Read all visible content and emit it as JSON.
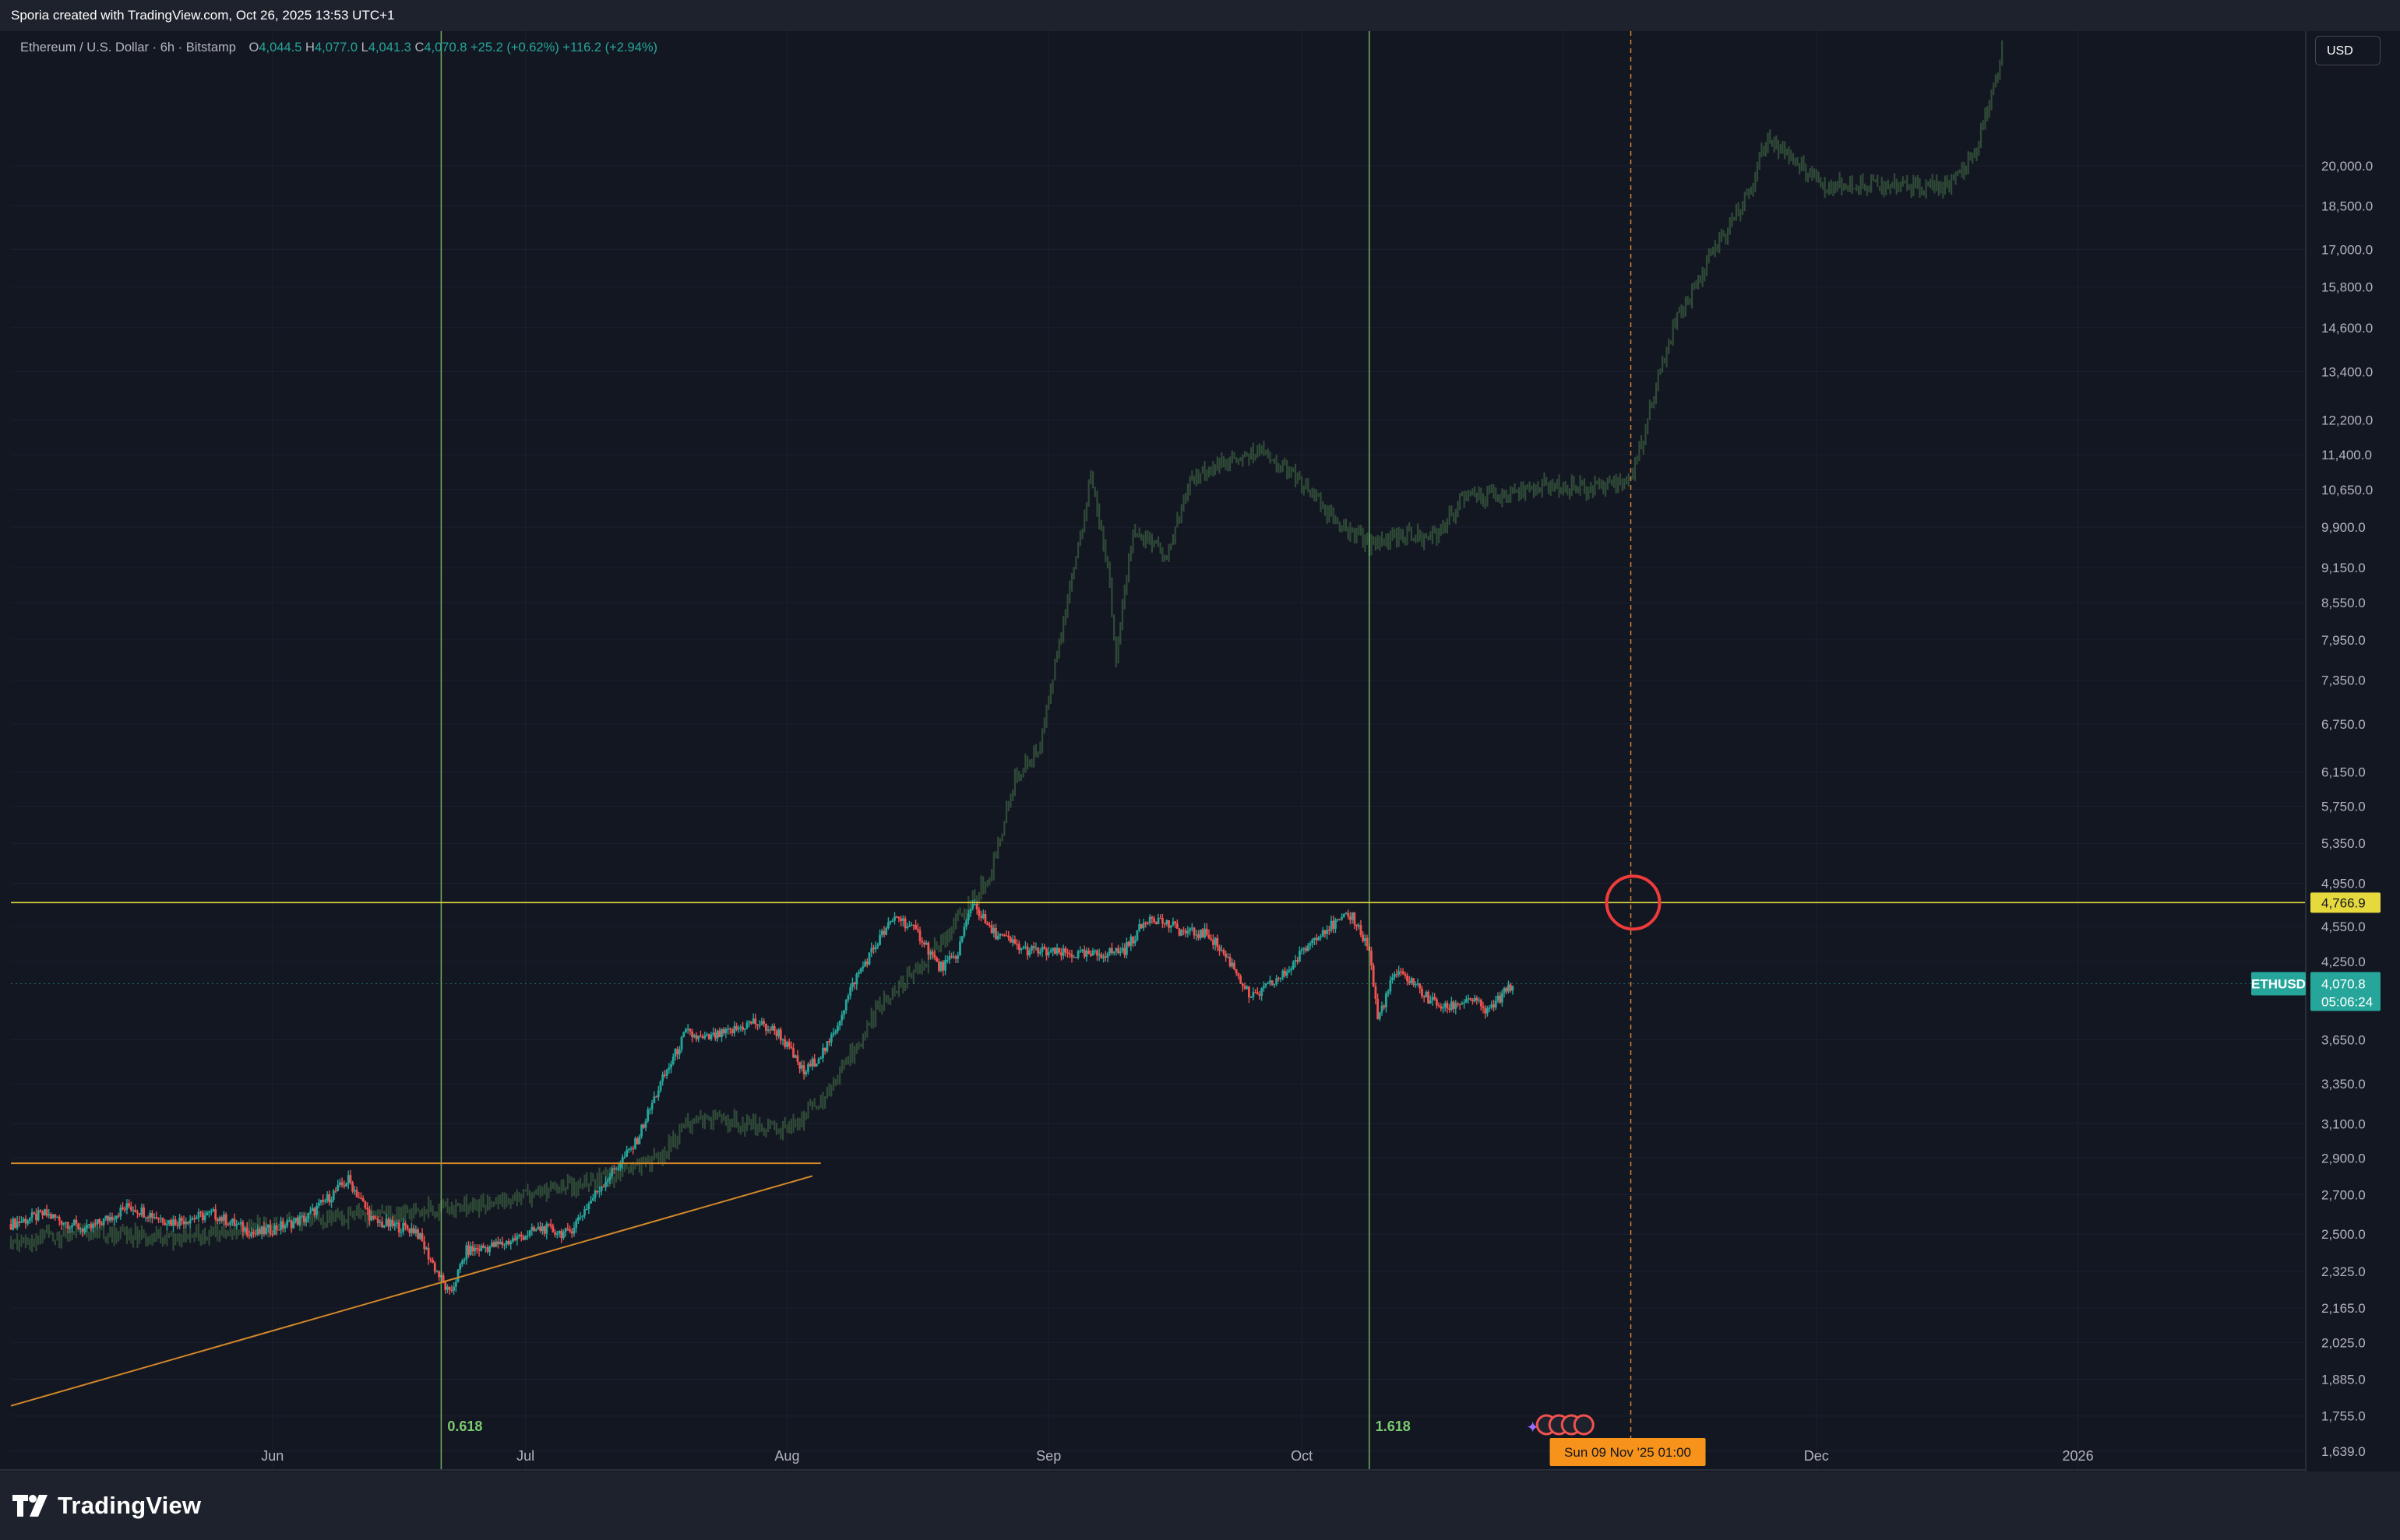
{
  "header": {
    "attribution": "Sporia created with TradingView.com, Oct 26, 2025 13:53 UTC+1"
  },
  "legend": {
    "symbol": "Ethereum / U.S. Dollar · 6h · Bitstamp",
    "open_label": "O",
    "open": "4,044.5",
    "high_label": "H",
    "high": "4,077.0",
    "low_label": "L",
    "low": "4,041.3",
    "close_label": "C",
    "close": "4,070.8",
    "change": "+25.2 (+0.62%) +116.2 (+2.94%)"
  },
  "currency": "USD",
  "brand": {
    "name": "TradingView",
    "logo_icon": "tradingview-logo-icon"
  },
  "colors": {
    "background": "#131722",
    "up": "#26a69a",
    "down": "#ef5350",
    "fractal": "#2f4a37",
    "fib_lines": "#7ecb6f",
    "horizontal": "#e6d93e",
    "trend": "#d4882a",
    "marker": "#ef3b3b",
    "crosshair": "#e08a3a"
  },
  "chart_data": {
    "type": "candlestick",
    "x_type": "date",
    "log_scale": true,
    "y_range": [
      1580,
      26000
    ],
    "x_range": [
      "2025-05-01",
      "2026-01-28"
    ],
    "x_ticks": [
      {
        "label": "Jun",
        "date": "2025-06-01"
      },
      {
        "label": "Jul",
        "date": "2025-07-01"
      },
      {
        "label": "Aug",
        "date": "2025-08-01"
      },
      {
        "label": "Sep",
        "date": "2025-09-01"
      },
      {
        "label": "Oct",
        "date": "2025-10-01"
      },
      {
        "label": "N",
        "date": "2025-11-01"
      },
      {
        "label": "Dec",
        "date": "2025-12-01"
      },
      {
        "label": "2026",
        "date": "2026-01-01"
      }
    ],
    "y_ticks": [
      "20,000.0",
      "18,500.0",
      "17,000.0",
      "15,800.0",
      "14,600.0",
      "13,400.0",
      "12,200.0",
      "11,400.0",
      "10,650.0",
      "9,900.0",
      "9,150.0",
      "8,550.0",
      "7,950.0",
      "7,350.0",
      "6,750.0",
      "6,150.0",
      "5,750.0",
      "5,350.0",
      "4,950.0",
      "4,550.0",
      "4,250.0",
      "3,650.0",
      "3,350.0",
      "3,100.0",
      "2,900.0",
      "2,700.0",
      "2,500.0",
      "2,325.0",
      "2,165.0",
      "2,025.0",
      "1,885.0",
      "1,755.0",
      "1,639.0"
    ],
    "series": [
      {
        "name": "ETHUSD",
        "style": "candles",
        "points": [
          {
            "date": "2025-05-01",
            "close": 2550
          },
          {
            "date": "2025-05-05",
            "close": 2600
          },
          {
            "date": "2025-05-10",
            "close": 2520
          },
          {
            "date": "2025-05-15",
            "close": 2640
          },
          {
            "date": "2025-05-20",
            "close": 2560
          },
          {
            "date": "2025-05-25",
            "close": 2600
          },
          {
            "date": "2025-05-30",
            "close": 2500
          },
          {
            "date": "2025-06-05",
            "close": 2580
          },
          {
            "date": "2025-06-10",
            "close": 2780
          },
          {
            "date": "2025-06-13",
            "close": 2560
          },
          {
            "date": "2025-06-18",
            "close": 2520
          },
          {
            "date": "2025-06-20",
            "close": 2360
          },
          {
            "date": "2025-06-22",
            "close": 2220
          },
          {
            "date": "2025-06-24",
            "close": 2420
          },
          {
            "date": "2025-06-28",
            "close": 2450
          },
          {
            "date": "2025-07-03",
            "close": 2530
          },
          {
            "date": "2025-07-06",
            "close": 2500
          },
          {
            "date": "2025-07-10",
            "close": 2750
          },
          {
            "date": "2025-07-14",
            "close": 2980
          },
          {
            "date": "2025-07-17",
            "close": 3350
          },
          {
            "date": "2025-07-20",
            "close": 3700
          },
          {
            "date": "2025-07-22",
            "close": 3650
          },
          {
            "date": "2025-07-25",
            "close": 3700
          },
          {
            "date": "2025-07-28",
            "close": 3780
          },
          {
            "date": "2025-07-31",
            "close": 3700
          },
          {
            "date": "2025-08-03",
            "close": 3420
          },
          {
            "date": "2025-08-06",
            "close": 3620
          },
          {
            "date": "2025-08-09",
            "close": 4100
          },
          {
            "date": "2025-08-12",
            "close": 4450
          },
          {
            "date": "2025-08-14",
            "close": 4650
          },
          {
            "date": "2025-08-17",
            "close": 4450
          },
          {
            "date": "2025-08-19",
            "close": 4200
          },
          {
            "date": "2025-08-21",
            "close": 4280
          },
          {
            "date": "2025-08-23",
            "close": 4780
          },
          {
            "date": "2025-08-25",
            "close": 4520
          },
          {
            "date": "2025-08-29",
            "close": 4350
          },
          {
            "date": "2025-09-02",
            "close": 4320
          },
          {
            "date": "2025-09-06",
            "close": 4300
          },
          {
            "date": "2025-09-10",
            "close": 4350
          },
          {
            "date": "2025-09-13",
            "close": 4650
          },
          {
            "date": "2025-09-17",
            "close": 4500
          },
          {
            "date": "2025-09-20",
            "close": 4480
          },
          {
            "date": "2025-09-23",
            "close": 4200
          },
          {
            "date": "2025-09-25",
            "close": 3950
          },
          {
            "date": "2025-09-29",
            "close": 4150
          },
          {
            "date": "2025-10-03",
            "close": 4500
          },
          {
            "date": "2025-10-07",
            "close": 4650
          },
          {
            "date": "2025-10-09",
            "close": 4350
          },
          {
            "date": "2025-10-10",
            "close": 3800
          },
          {
            "date": "2025-10-12",
            "close": 4150
          },
          {
            "date": "2025-10-14",
            "close": 4100
          },
          {
            "date": "2025-10-16",
            "close": 3950
          },
          {
            "date": "2025-10-18",
            "close": 3880
          },
          {
            "date": "2025-10-21",
            "close": 3960
          },
          {
            "date": "2025-10-23",
            "close": 3850
          },
          {
            "date": "2025-10-26",
            "close": 4070.8
          }
        ]
      },
      {
        "name": "Fractal projection",
        "style": "faded-bars",
        "points": [
          {
            "date": "2025-05-01",
            "close": 2460
          },
          {
            "date": "2025-05-10",
            "close": 2520
          },
          {
            "date": "2025-05-20",
            "close": 2480
          },
          {
            "date": "2025-06-01",
            "close": 2550
          },
          {
            "date": "2025-06-15",
            "close": 2600
          },
          {
            "date": "2025-06-25",
            "close": 2650
          },
          {
            "date": "2025-07-01",
            "close": 2700
          },
          {
            "date": "2025-07-10",
            "close": 2780
          },
          {
            "date": "2025-07-17",
            "close": 2900
          },
          {
            "date": "2025-07-20",
            "close": 3100
          },
          {
            "date": "2025-07-25",
            "close": 3120
          },
          {
            "date": "2025-08-01",
            "close": 3060
          },
          {
            "date": "2025-08-06",
            "close": 3300
          },
          {
            "date": "2025-08-12",
            "close": 3900
          },
          {
            "date": "2025-08-18",
            "close": 4300
          },
          {
            "date": "2025-08-25",
            "close": 5000
          },
          {
            "date": "2025-08-28",
            "close": 6050
          },
          {
            "date": "2025-08-31",
            "close": 6500
          },
          {
            "date": "2025-09-03",
            "close": 8400
          },
          {
            "date": "2025-09-06",
            "close": 10900
          },
          {
            "date": "2025-09-08",
            "close": 9200
          },
          {
            "date": "2025-09-09",
            "close": 7650
          },
          {
            "date": "2025-09-11",
            "close": 9900
          },
          {
            "date": "2025-09-15",
            "close": 9400
          },
          {
            "date": "2025-09-18",
            "close": 10900
          },
          {
            "date": "2025-09-22",
            "close": 11200
          },
          {
            "date": "2025-09-26",
            "close": 11500
          },
          {
            "date": "2025-10-01",
            "close": 10800
          },
          {
            "date": "2025-10-05",
            "close": 10000
          },
          {
            "date": "2025-10-09",
            "close": 9600
          },
          {
            "date": "2025-10-13",
            "close": 9750
          },
          {
            "date": "2025-10-17",
            "close": 9700
          },
          {
            "date": "2025-10-20",
            "close": 10500
          },
          {
            "date": "2025-10-25",
            "close": 10550
          },
          {
            "date": "2025-10-30",
            "close": 10750
          },
          {
            "date": "2025-11-04",
            "close": 10700
          },
          {
            "date": "2025-11-09",
            "close": 10900
          },
          {
            "date": "2025-11-11",
            "close": 12200
          },
          {
            "date": "2025-11-14",
            "close": 14600
          },
          {
            "date": "2025-11-19",
            "close": 17000
          },
          {
            "date": "2025-11-23",
            "close": 19000
          },
          {
            "date": "2025-11-25",
            "close": 21000
          },
          {
            "date": "2025-11-28",
            "close": 20400
          },
          {
            "date": "2025-12-02",
            "close": 19200
          },
          {
            "date": "2025-12-06",
            "close": 19400
          },
          {
            "date": "2025-12-12",
            "close": 19200
          },
          {
            "date": "2025-12-17",
            "close": 19300
          },
          {
            "date": "2025-12-20",
            "close": 20500
          },
          {
            "date": "2025-12-23",
            "close": 25000
          }
        ]
      }
    ],
    "drawings": {
      "fib_lines": [
        {
          "date": "2025-06-21",
          "label": "0.618"
        },
        {
          "date": "2025-10-09",
          "label": "1.618"
        }
      ],
      "horizontal_level": 4766.9,
      "resistance": {
        "from_date": "2025-05-01",
        "to_date": "2025-08-05",
        "price": 2870
      },
      "trendline": [
        {
          "date": "2025-05-01",
          "price": 1790
        },
        {
          "date": "2025-08-04",
          "price": 2800
        }
      ],
      "target_date": "2025-11-09",
      "target_price": 4766.9
    },
    "price_labels": {
      "level": "4,766.9",
      "symbol": "ETHUSD",
      "last": "4,070.8",
      "countdown": "05:06:24",
      "last_price": 4070.8
    },
    "crosshair_label": "Sun 09 Nov '25   01:00"
  }
}
